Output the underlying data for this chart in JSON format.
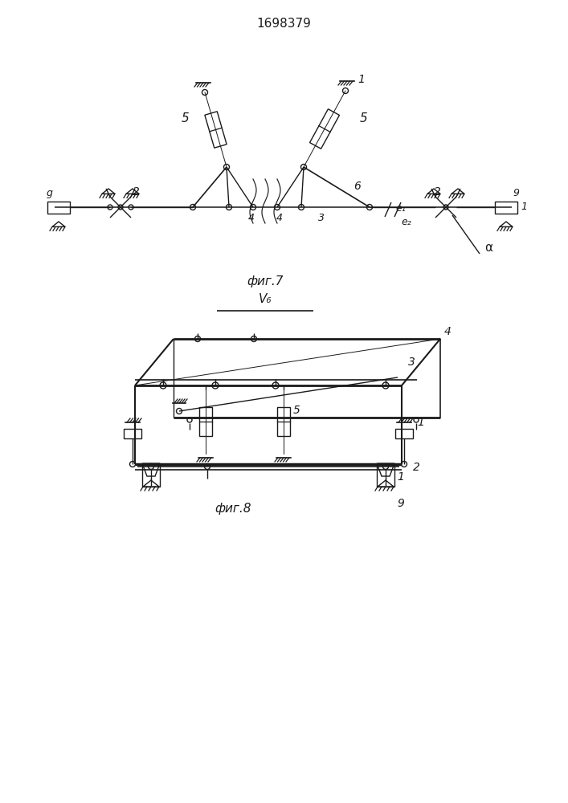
{
  "title": "1698379",
  "fig7_label": "фиг.7",
  "fig8_label": "фиг.8",
  "bg_color": "#ffffff",
  "line_color": "#1a1a1a",
  "lw": 1.0
}
